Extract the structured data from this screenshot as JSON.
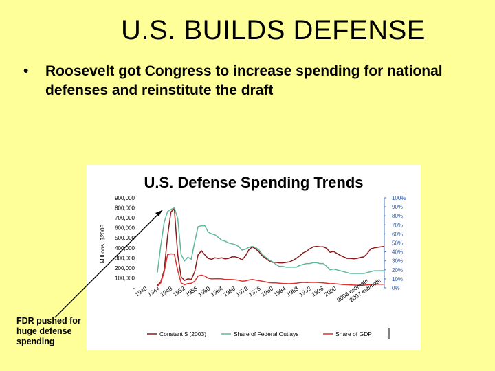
{
  "slide": {
    "title": "U.S. BUILDS DEFENSE",
    "bullet_symbol": "•",
    "bullet_text": "Roosevelt got Congress to increase spending for national defenses and reinstitute the draft",
    "note": "FDR pushed for huge defense spending"
  },
  "colors": {
    "background": "#ffff99",
    "constant_series": "#8b1a1a",
    "share_outlays_series": "#5fb89a",
    "share_gdp_series": "#e03030",
    "right_axis_text": "#1f5fbf"
  },
  "chart_data": {
    "type": "line",
    "title": "U.S. Defense Spending Trends",
    "ylabel": "Millions, $2003",
    "ylim": [
      0,
      900000
    ],
    "y2lim": [
      0,
      100
    ],
    "left_ticks": [
      "900,000",
      "800,000",
      "700,000",
      "600,000",
      "500,000",
      "400,000",
      "300,000",
      "200,000",
      "100,000",
      "-"
    ],
    "right_ticks": [
      "100%",
      "90%",
      "80%",
      "70%",
      "60%",
      "50%",
      "40%",
      "30%",
      "20%",
      "10%",
      "0%"
    ],
    "x_tick_labels": [
      "1940",
      "1944",
      "1948",
      "1952",
      "1956",
      "1960",
      "1964",
      "1968",
      "1972",
      "1976",
      "1980",
      "1984",
      "1988",
      "1992",
      "1996",
      "2000",
      "2003 estimate",
      "2007 estimate"
    ],
    "x_range": [
      1940,
      2007
    ],
    "grid": false,
    "legend_position": "bottom",
    "series": [
      {
        "name": "Constant $ (2003)",
        "axis": "left",
        "points": [
          [
            1940,
            25000
          ],
          [
            1941,
            60000
          ],
          [
            1942,
            180000
          ],
          [
            1943,
            520000
          ],
          [
            1944,
            760000
          ],
          [
            1945,
            790000
          ],
          [
            1946,
            330000
          ],
          [
            1947,
            110000
          ],
          [
            1948,
            75000
          ],
          [
            1949,
            90000
          ],
          [
            1950,
            85000
          ],
          [
            1951,
            160000
          ],
          [
            1952,
            330000
          ],
          [
            1953,
            370000
          ],
          [
            1954,
            330000
          ],
          [
            1955,
            295000
          ],
          [
            1956,
            285000
          ],
          [
            1957,
            300000
          ],
          [
            1958,
            295000
          ],
          [
            1959,
            300000
          ],
          [
            1960,
            290000
          ],
          [
            1961,
            295000
          ],
          [
            1962,
            310000
          ],
          [
            1963,
            310000
          ],
          [
            1964,
            300000
          ],
          [
            1965,
            280000
          ],
          [
            1966,
            320000
          ],
          [
            1967,
            380000
          ],
          [
            1968,
            410000
          ],
          [
            1969,
            390000
          ],
          [
            1970,
            360000
          ],
          [
            1971,
            320000
          ],
          [
            1972,
            295000
          ],
          [
            1973,
            270000
          ],
          [
            1974,
            255000
          ],
          [
            1975,
            255000
          ],
          [
            1976,
            250000
          ],
          [
            1977,
            250000
          ],
          [
            1978,
            255000
          ],
          [
            1979,
            260000
          ],
          [
            1980,
            275000
          ],
          [
            1981,
            295000
          ],
          [
            1982,
            320000
          ],
          [
            1983,
            350000
          ],
          [
            1984,
            365000
          ],
          [
            1985,
            390000
          ],
          [
            1986,
            410000
          ],
          [
            1987,
            415000
          ],
          [
            1988,
            410000
          ],
          [
            1989,
            410000
          ],
          [
            1990,
            395000
          ],
          [
            1991,
            355000
          ],
          [
            1992,
            365000
          ],
          [
            1993,
            345000
          ],
          [
            1994,
            325000
          ],
          [
            1995,
            310000
          ],
          [
            1996,
            295000
          ],
          [
            1997,
            295000
          ],
          [
            1998,
            290000
          ],
          [
            1999,
            295000
          ],
          [
            2000,
            305000
          ],
          [
            2001,
            310000
          ],
          [
            2002,
            345000
          ],
          [
            2003,
            390000
          ],
          [
            2004,
            400000
          ],
          [
            2005,
            405000
          ],
          [
            2006,
            410000
          ],
          [
            2007,
            415000
          ]
        ]
      },
      {
        "name": "Share of Federal Outlays",
        "axis": "right",
        "points": [
          [
            1940,
            17
          ],
          [
            1941,
            47
          ],
          [
            1942,
            73
          ],
          [
            1943,
            85
          ],
          [
            1944,
            87
          ],
          [
            1945,
            89
          ],
          [
            1946,
            77
          ],
          [
            1947,
            37
          ],
          [
            1948,
            30
          ],
          [
            1949,
            34
          ],
          [
            1950,
            32
          ],
          [
            1951,
            51
          ],
          [
            1952,
            68
          ],
          [
            1953,
            69
          ],
          [
            1954,
            69
          ],
          [
            1955,
            62
          ],
          [
            1956,
            60
          ],
          [
            1957,
            59
          ],
          [
            1958,
            56
          ],
          [
            1959,
            53
          ],
          [
            1960,
            52
          ],
          [
            1961,
            50
          ],
          [
            1962,
            49
          ],
          [
            1963,
            48
          ],
          [
            1964,
            46
          ],
          [
            1965,
            42
          ],
          [
            1966,
            43
          ],
          [
            1967,
            45
          ],
          [
            1968,
            46
          ],
          [
            1969,
            45
          ],
          [
            1970,
            42
          ],
          [
            1971,
            37
          ],
          [
            1972,
            34
          ],
          [
            1973,
            31
          ],
          [
            1974,
            29
          ],
          [
            1975,
            26
          ],
          [
            1976,
            24
          ],
          [
            1977,
            24
          ],
          [
            1978,
            23
          ],
          [
            1979,
            23
          ],
          [
            1980,
            23
          ],
          [
            1981,
            23
          ],
          [
            1982,
            25
          ],
          [
            1983,
            26
          ],
          [
            1984,
            27
          ],
          [
            1985,
            27
          ],
          [
            1986,
            28
          ],
          [
            1987,
            28
          ],
          [
            1988,
            27
          ],
          [
            1989,
            27
          ],
          [
            1990,
            24
          ],
          [
            1991,
            20
          ],
          [
            1992,
            21
          ],
          [
            1993,
            20
          ],
          [
            1994,
            19
          ],
          [
            1995,
            18
          ],
          [
            1996,
            17
          ],
          [
            1997,
            16
          ],
          [
            1998,
            16
          ],
          [
            1999,
            16
          ],
          [
            2000,
            16
          ],
          [
            2001,
            16
          ],
          [
            2002,
            17
          ],
          [
            2003,
            18
          ],
          [
            2004,
            19
          ],
          [
            2005,
            19
          ],
          [
            2006,
            19
          ],
          [
            2007,
            19
          ]
        ]
      },
      {
        "name": "Share of GDP",
        "axis": "right",
        "points": [
          [
            1940,
            1.7
          ],
          [
            1941,
            5.6
          ],
          [
            1942,
            17.8
          ],
          [
            1943,
            37.0
          ],
          [
            1944,
            37.8
          ],
          [
            1945,
            37.5
          ],
          [
            1946,
            19.2
          ],
          [
            1947,
            5.5
          ],
          [
            1948,
            3.5
          ],
          [
            1949,
            4.8
          ],
          [
            1950,
            5.0
          ],
          [
            1951,
            7.4
          ],
          [
            1952,
            13.2
          ],
          [
            1953,
            14.2
          ],
          [
            1954,
            13.1
          ],
          [
            1955,
            10.8
          ],
          [
            1956,
            10.0
          ],
          [
            1957,
            10.1
          ],
          [
            1958,
            10.2
          ],
          [
            1959,
            10.0
          ],
          [
            1960,
            9.3
          ],
          [
            1961,
            9.4
          ],
          [
            1962,
            9.2
          ],
          [
            1963,
            8.9
          ],
          [
            1964,
            8.5
          ],
          [
            1965,
            7.4
          ],
          [
            1966,
            7.7
          ],
          [
            1967,
            8.8
          ],
          [
            1968,
            9.4
          ],
          [
            1969,
            8.7
          ],
          [
            1970,
            8.1
          ],
          [
            1971,
            7.3
          ],
          [
            1972,
            6.7
          ],
          [
            1973,
            5.8
          ],
          [
            1974,
            5.5
          ],
          [
            1975,
            5.5
          ],
          [
            1976,
            5.2
          ],
          [
            1977,
            4.9
          ],
          [
            1978,
            4.7
          ],
          [
            1979,
            4.6
          ],
          [
            1980,
            4.9
          ],
          [
            1981,
            5.1
          ],
          [
            1982,
            5.7
          ],
          [
            1983,
            6.1
          ],
          [
            1984,
            5.9
          ],
          [
            1985,
            6.1
          ],
          [
            1986,
            6.2
          ],
          [
            1987,
            6.1
          ],
          [
            1988,
            5.8
          ],
          [
            1989,
            5.6
          ],
          [
            1990,
            5.2
          ],
          [
            1991,
            4.6
          ],
          [
            1992,
            4.8
          ],
          [
            1993,
            4.4
          ],
          [
            1994,
            4.0
          ],
          [
            1995,
            3.7
          ],
          [
            1996,
            3.5
          ],
          [
            1997,
            3.3
          ],
          [
            1998,
            3.1
          ],
          [
            1999,
            3.0
          ],
          [
            2000,
            3.0
          ],
          [
            2001,
            3.0
          ],
          [
            2002,
            3.4
          ],
          [
            2003,
            3.7
          ],
          [
            2004,
            3.9
          ],
          [
            2005,
            4.0
          ],
          [
            2006,
            4.0
          ],
          [
            2007,
            4.0
          ]
        ]
      }
    ]
  }
}
